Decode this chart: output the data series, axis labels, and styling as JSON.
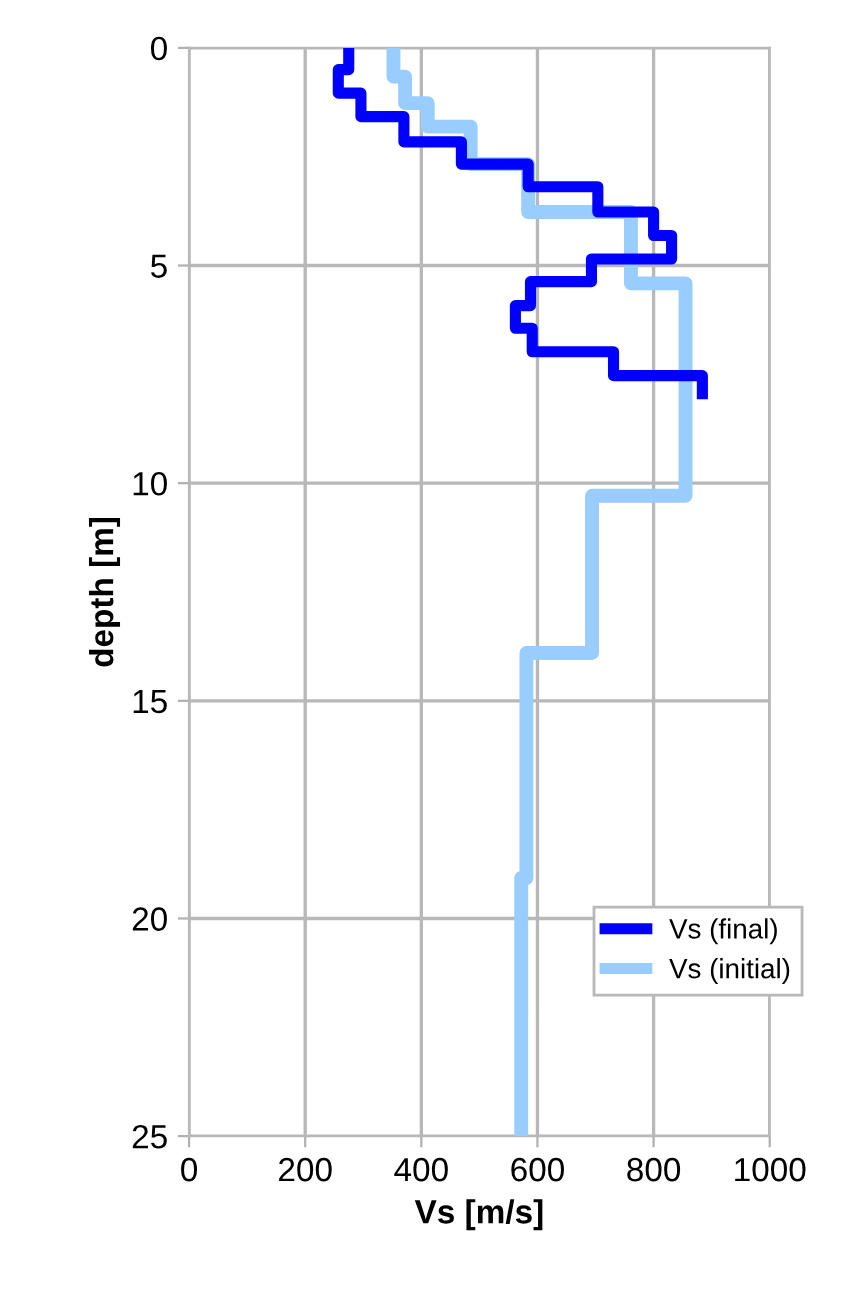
{
  "chart_data": {
    "type": "line",
    "xlabel": "Vs [m/s]",
    "ylabel": "depth [m]",
    "xlim": [
      0,
      1000
    ],
    "xticks": [
      0,
      200,
      400,
      600,
      800,
      1000
    ],
    "ylim": [
      25,
      0
    ],
    "yticks": [
      0,
      5,
      10,
      15,
      20,
      25
    ],
    "grid": true,
    "legend": "right",
    "marker": "none",
    "line_style": "solid",
    "series": [
      {
        "name": "Vs (final)",
        "color": "#0000ff",
        "x": [
          275,
          275,
          257,
          257,
          296,
          296,
          370,
          370,
          469,
          469,
          584,
          584,
          704,
          704,
          800,
          800,
          831,
          831,
          693,
          693,
          588,
          588,
          562,
          562,
          591,
          591,
          731,
          731,
          884,
          884
        ],
        "values": [
          0,
          0.5,
          0.5,
          1.04,
          1.04,
          1.58,
          1.58,
          2.16,
          2.16,
          2.67,
          2.67,
          3.19,
          3.19,
          3.77,
          3.77,
          4.31,
          4.31,
          4.85,
          4.85,
          5.37,
          5.37,
          5.92,
          5.92,
          6.44,
          6.44,
          6.98,
          6.98,
          7.53,
          7.53,
          8.07
        ]
      },
      {
        "name": "Vs (initial)",
        "color": "#99ccff",
        "x": [
          352,
          352,
          372,
          372,
          411,
          411,
          485,
          485,
          584,
          584,
          761,
          761,
          855,
          855,
          694,
          694,
          581,
          581,
          572,
          572
        ],
        "values": [
          0,
          0.66,
          0.66,
          1.27,
          1.27,
          1.81,
          1.81,
          2.67,
          2.67,
          3.77,
          3.77,
          5.41,
          5.41,
          10.29,
          10.29,
          13.9,
          13.9,
          19.07,
          19.07,
          25
        ]
      }
    ]
  }
}
